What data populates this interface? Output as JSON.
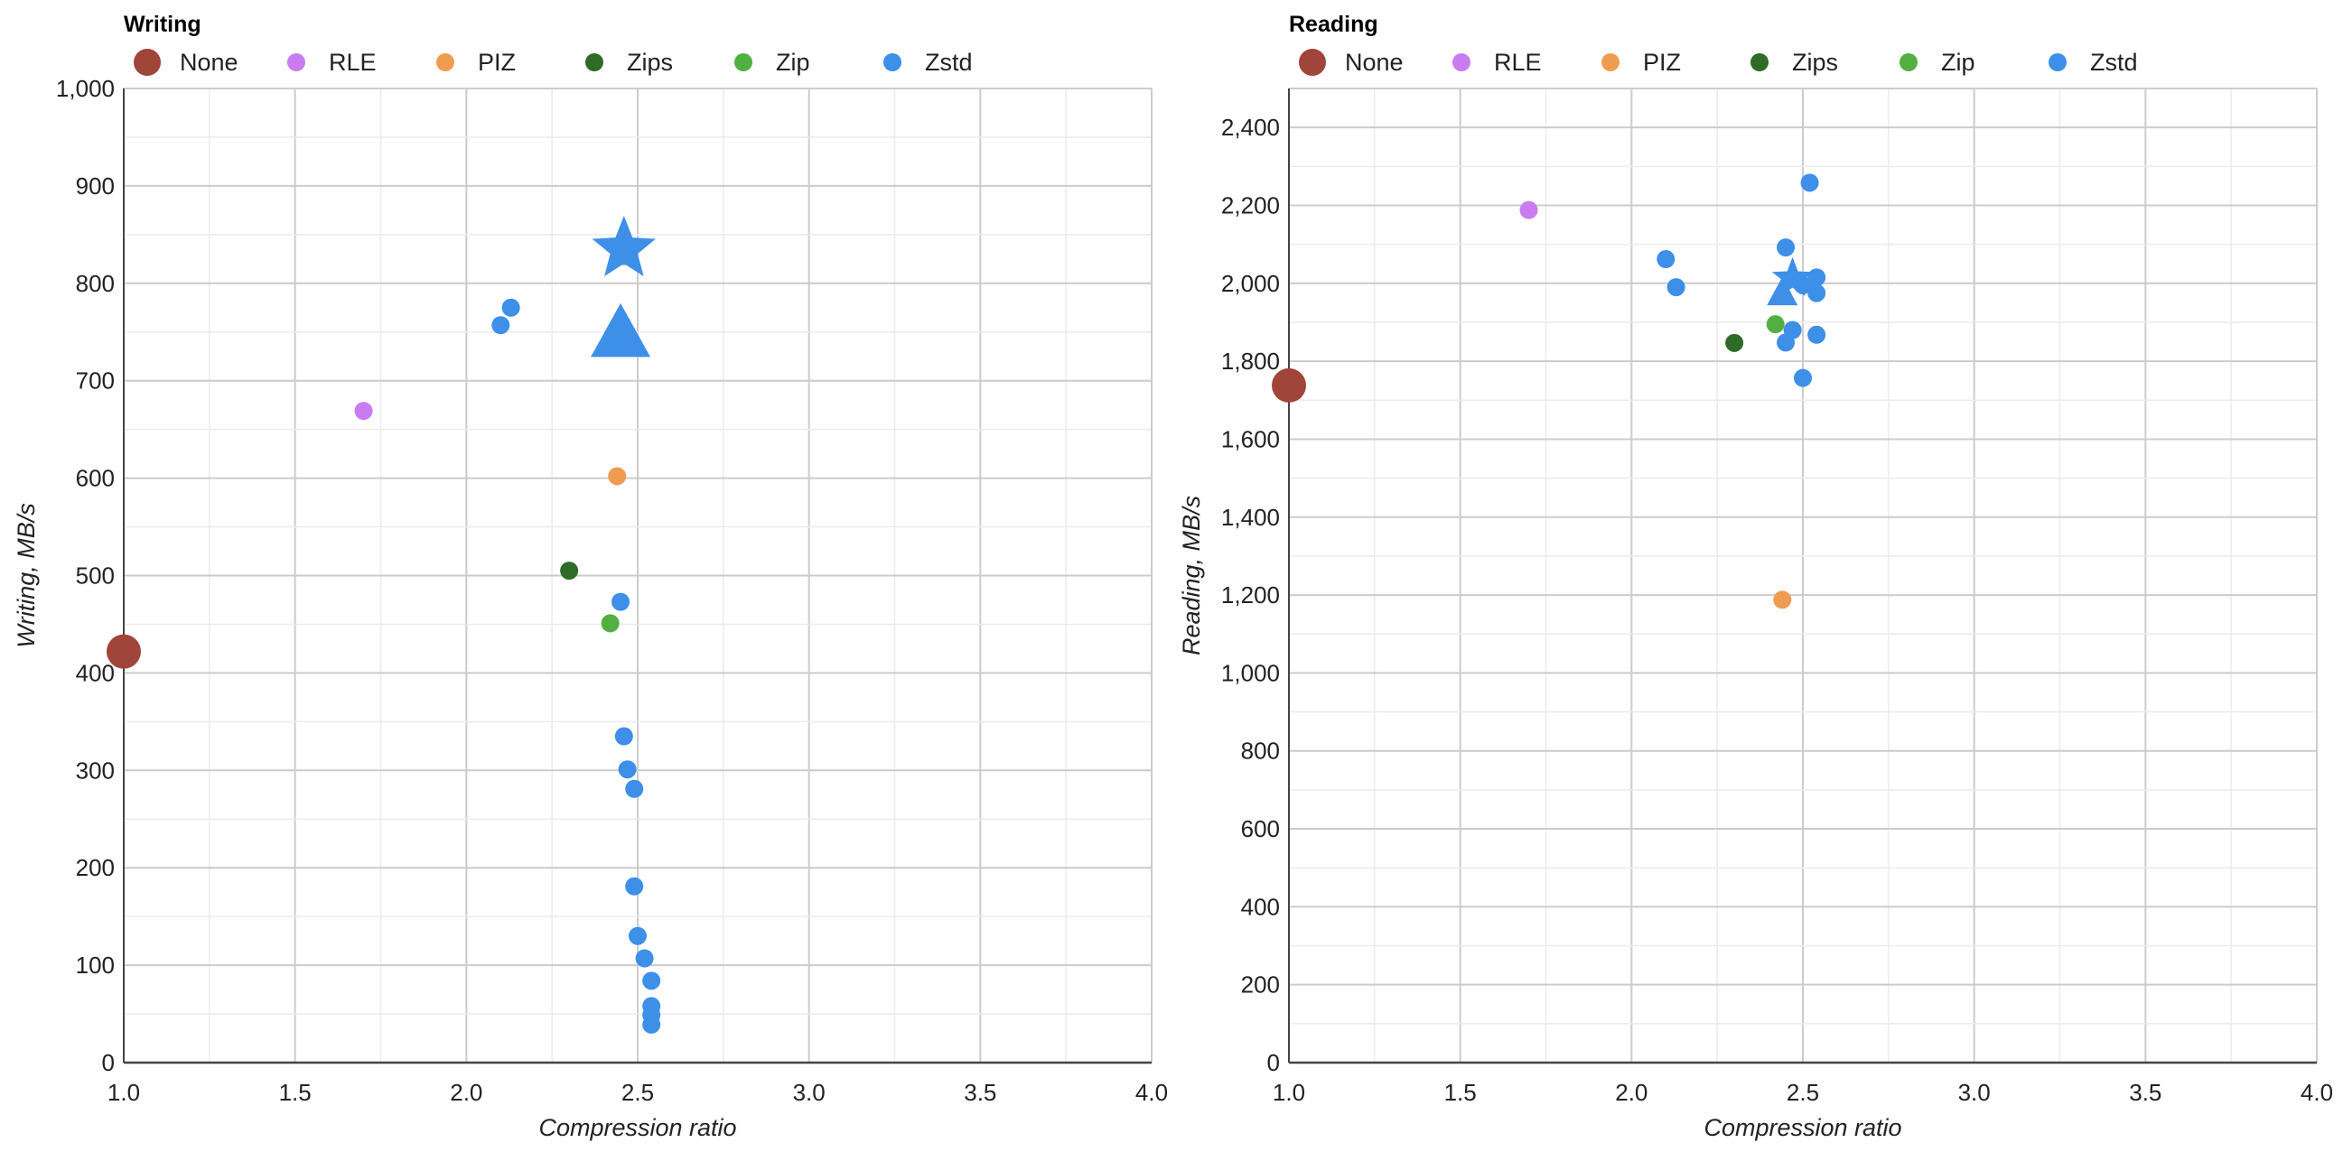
{
  "legend": [
    {
      "name": "None",
      "color": "#a0453a",
      "icon": "circle"
    },
    {
      "name": "RLE",
      "color": "#c97cf0",
      "icon": "circle"
    },
    {
      "name": "PIZ",
      "color": "#f09c50",
      "icon": "circle"
    },
    {
      "name": "Zips",
      "color": "#2e6b27",
      "icon": "circle"
    },
    {
      "name": "Zip",
      "color": "#52b043",
      "icon": "circle"
    },
    {
      "name": "Zstd",
      "color": "#3d8fe8",
      "icon": "circle"
    }
  ],
  "chart_data": [
    {
      "type": "scatter",
      "title": "Writing",
      "xlabel": "Compression ratio",
      "ylabel": "Writing, MB/s",
      "xlim": [
        1.0,
        4.0
      ],
      "ylim": [
        0,
        1000
      ],
      "x_ticks": [
        "1.0",
        "1.5",
        "2.0",
        "2.5",
        "3.0",
        "3.5",
        "4.0"
      ],
      "y_ticks": [
        "0",
        "100",
        "200",
        "300",
        "400",
        "500",
        "600",
        "700",
        "800",
        "900",
        "1,000"
      ],
      "grid": true,
      "legend_position": "top",
      "series": [
        {
          "name": "None",
          "points": [
            {
              "x": 1.0,
              "y": 422,
              "marker": "large-circle"
            }
          ]
        },
        {
          "name": "RLE",
          "points": [
            {
              "x": 1.7,
              "y": 669,
              "marker": "circle"
            }
          ]
        },
        {
          "name": "PIZ",
          "points": [
            {
              "x": 2.44,
              "y": 602,
              "marker": "circle"
            }
          ]
        },
        {
          "name": "Zips",
          "points": [
            {
              "x": 2.3,
              "y": 505,
              "marker": "circle"
            }
          ]
        },
        {
          "name": "Zip",
          "points": [
            {
              "x": 2.42,
              "y": 451,
              "marker": "circle"
            }
          ]
        },
        {
          "name": "Zstd",
          "points": [
            {
              "x": 2.13,
              "y": 775,
              "marker": "circle"
            },
            {
              "x": 2.1,
              "y": 757,
              "marker": "circle"
            },
            {
              "x": 2.46,
              "y": 828,
              "marker": "circle"
            },
            {
              "x": 2.45,
              "y": 473,
              "marker": "circle"
            },
            {
              "x": 2.46,
              "y": 335,
              "marker": "circle"
            },
            {
              "x": 2.47,
              "y": 301,
              "marker": "circle"
            },
            {
              "x": 2.49,
              "y": 281,
              "marker": "circle"
            },
            {
              "x": 2.49,
              "y": 181,
              "marker": "circle"
            },
            {
              "x": 2.5,
              "y": 130,
              "marker": "circle"
            },
            {
              "x": 2.52,
              "y": 107,
              "marker": "circle"
            },
            {
              "x": 2.54,
              "y": 84,
              "marker": "circle"
            },
            {
              "x": 2.54,
              "y": 58,
              "marker": "circle"
            },
            {
              "x": 2.54,
              "y": 49,
              "marker": "circle"
            },
            {
              "x": 2.54,
              "y": 39,
              "marker": "circle"
            },
            {
              "x": 2.46,
              "y": 835,
              "marker": "star"
            },
            {
              "x": 2.45,
              "y": 748,
              "marker": "triangle"
            }
          ]
        }
      ]
    },
    {
      "type": "scatter",
      "title": "Reading",
      "xlabel": "Compression ratio",
      "ylabel": "Reading, MB/s",
      "xlim": [
        1.0,
        4.0
      ],
      "ylim": [
        0,
        2500
      ],
      "x_ticks": [
        "1.0",
        "1.5",
        "2.0",
        "2.5",
        "3.0",
        "3.5",
        "4.0"
      ],
      "y_ticks": [
        "0",
        "200",
        "400",
        "600",
        "800",
        "1,000",
        "1,200",
        "1,400",
        "1,600",
        "1,800",
        "2,000",
        "2,200",
        "2,400"
      ],
      "grid": true,
      "legend_position": "top",
      "series": [
        {
          "name": "None",
          "points": [
            {
              "x": 1.0,
              "y": 1738,
              "marker": "large-circle"
            }
          ]
        },
        {
          "name": "RLE",
          "points": [
            {
              "x": 1.7,
              "y": 2188,
              "marker": "circle"
            }
          ]
        },
        {
          "name": "PIZ",
          "points": [
            {
              "x": 2.44,
              "y": 1188,
              "marker": "circle"
            }
          ]
        },
        {
          "name": "Zips",
          "points": [
            {
              "x": 2.3,
              "y": 1847,
              "marker": "circle"
            }
          ]
        },
        {
          "name": "Zip",
          "points": [
            {
              "x": 2.42,
              "y": 1895,
              "marker": "circle"
            }
          ]
        },
        {
          "name": "Zstd",
          "points": [
            {
              "x": 2.1,
              "y": 2062,
              "marker": "circle"
            },
            {
              "x": 2.13,
              "y": 1990,
              "marker": "circle"
            },
            {
              "x": 2.45,
              "y": 2092,
              "marker": "circle"
            },
            {
              "x": 2.52,
              "y": 2258,
              "marker": "circle"
            },
            {
              "x": 2.5,
              "y": 1995,
              "marker": "circle"
            },
            {
              "x": 2.54,
              "y": 2015,
              "marker": "circle"
            },
            {
              "x": 2.54,
              "y": 1975,
              "marker": "circle"
            },
            {
              "x": 2.47,
              "y": 1880,
              "marker": "circle"
            },
            {
              "x": 2.54,
              "y": 1868,
              "marker": "circle"
            },
            {
              "x": 2.45,
              "y": 1848,
              "marker": "circle"
            },
            {
              "x": 2.5,
              "y": 1757,
              "marker": "circle"
            },
            {
              "x": 2.47,
              "y": 2012,
              "marker": "star"
            },
            {
              "x": 2.44,
              "y": 1975,
              "marker": "triangle"
            }
          ]
        }
      ]
    }
  ]
}
